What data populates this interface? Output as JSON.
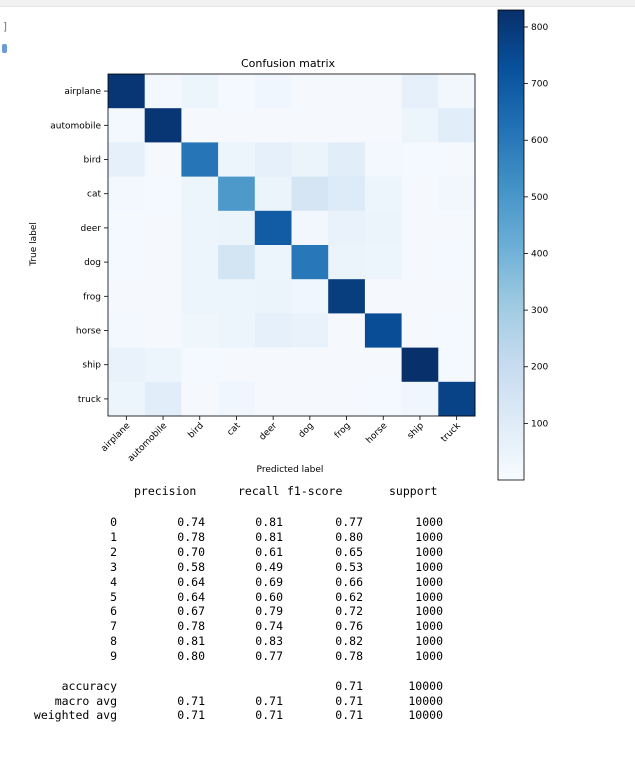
{
  "ui": {
    "cell_prompt": "]"
  },
  "chart_data": {
    "type": "heatmap",
    "title": "Confusion matrix",
    "xlabel": "Predicted label",
    "ylabel": "True label",
    "labels": [
      "airplane",
      "automobile",
      "bird",
      "cat",
      "deer",
      "dog",
      "frog",
      "horse",
      "ship",
      "truck"
    ],
    "colorbar_ticks": [
      100,
      200,
      300,
      400,
      500,
      600,
      700,
      800
    ],
    "colorbar_range": [
      0,
      830
    ],
    "matrix": [
      [
        810,
        20,
        40,
        15,
        30,
        10,
        10,
        10,
        70,
        25
      ],
      [
        20,
        810,
        10,
        10,
        10,
        10,
        10,
        10,
        45,
        90
      ],
      [
        70,
        10,
        610,
        40,
        70,
        50,
        90,
        20,
        15,
        10
      ],
      [
        20,
        15,
        40,
        490,
        50,
        140,
        110,
        40,
        10,
        25
      ],
      [
        15,
        10,
        40,
        50,
        690,
        25,
        60,
        50,
        10,
        10
      ],
      [
        15,
        10,
        40,
        150,
        45,
        600,
        50,
        45,
        10,
        15
      ],
      [
        10,
        10,
        40,
        40,
        50,
        30,
        790,
        10,
        10,
        10
      ],
      [
        20,
        10,
        35,
        40,
        70,
        60,
        10,
        740,
        10,
        15
      ],
      [
        60,
        40,
        15,
        10,
        10,
        10,
        10,
        10,
        830,
        15
      ],
      [
        40,
        90,
        10,
        30,
        10,
        10,
        10,
        15,
        30,
        770
      ]
    ]
  },
  "report": {
    "headers": [
      "precision",
      "recall",
      "f1-score",
      "support"
    ],
    "rows": [
      {
        "label": "0",
        "precision": "0.74",
        "recall": "0.81",
        "f1": "0.77",
        "support": "1000"
      },
      {
        "label": "1",
        "precision": "0.78",
        "recall": "0.81",
        "f1": "0.80",
        "support": "1000"
      },
      {
        "label": "2",
        "precision": "0.70",
        "recall": "0.61",
        "f1": "0.65",
        "support": "1000"
      },
      {
        "label": "3",
        "precision": "0.58",
        "recall": "0.49",
        "f1": "0.53",
        "support": "1000"
      },
      {
        "label": "4",
        "precision": "0.64",
        "recall": "0.69",
        "f1": "0.66",
        "support": "1000"
      },
      {
        "label": "5",
        "precision": "0.64",
        "recall": "0.60",
        "f1": "0.62",
        "support": "1000"
      },
      {
        "label": "6",
        "precision": "0.67",
        "recall": "0.79",
        "f1": "0.72",
        "support": "1000"
      },
      {
        "label": "7",
        "precision": "0.78",
        "recall": "0.74",
        "f1": "0.76",
        "support": "1000"
      },
      {
        "label": "8",
        "precision": "0.81",
        "recall": "0.83",
        "f1": "0.82",
        "support": "1000"
      },
      {
        "label": "9",
        "precision": "0.80",
        "recall": "0.77",
        "f1": "0.78",
        "support": "1000"
      }
    ],
    "summary": [
      {
        "label": "accuracy",
        "precision": "",
        "recall": "",
        "f1": "0.71",
        "support": "10000"
      },
      {
        "label": "macro avg",
        "precision": "0.71",
        "recall": "0.71",
        "f1": "0.71",
        "support": "10000"
      },
      {
        "label": "weighted avg",
        "precision": "0.71",
        "recall": "0.71",
        "f1": "0.71",
        "support": "10000"
      }
    ]
  }
}
